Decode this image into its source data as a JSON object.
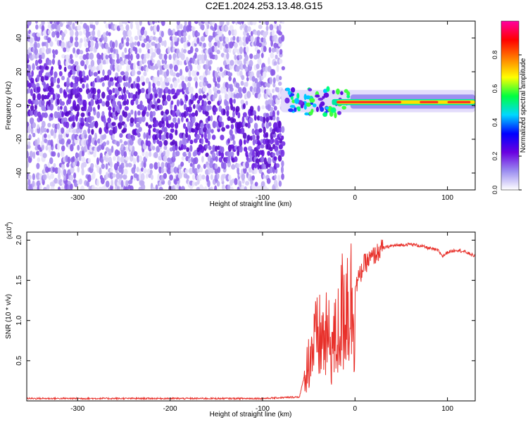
{
  "title": "C2E1.2024.253.13.48.G15",
  "chart_data": [
    {
      "type": "heatmap",
      "name": "spectrogram",
      "xlabel": "Height of straight line (km)",
      "ylabel": "Frequency (Hz)",
      "xlim": [
        -355,
        130
      ],
      "ylim": [
        -50,
        50
      ],
      "xticks": [
        -300,
        -200,
        -100,
        0,
        100
      ],
      "yticks": [
        -40,
        -20,
        0,
        20,
        40
      ],
      "noise_region_end_km": -78,
      "signal_band": {
        "x_start": -80,
        "x_end": 130,
        "center_hz": 2,
        "halfwidth_hz": 3
      },
      "colorbar": {
        "label": "Normalized spectral amplitude",
        "range": [
          0,
          1
        ],
        "ticks": [
          0.0,
          0.2,
          0.4,
          0.6,
          0.8
        ],
        "colors": [
          "#ffffff",
          "#9c8ef0",
          "#6a00e0",
          "#0000ff",
          "#00d8ff",
          "#00ff40",
          "#ffff00",
          "#ff8000",
          "#ff0000",
          "#ff00a0"
        ]
      }
    },
    {
      "type": "line",
      "name": "snr",
      "xlabel": "Height of straight line (km)",
      "ylabel": "SNR (10 * v/v)",
      "exponent_label": "(x10",
      "exponent_power": "4",
      "exponent_close": ")",
      "xlim": [
        -355,
        130
      ],
      "ylim": [
        0,
        2.1
      ],
      "xticks": [
        -300,
        -200,
        -100,
        0,
        100
      ],
      "yticks": [
        0.5,
        1.0,
        1.5,
        2.0
      ],
      "color": "#e8302a",
      "series": [
        {
          "name": "snr",
          "x": [
            -355,
            -300,
            -200,
            -100,
            -60,
            -55,
            -50,
            -45,
            -40,
            -35,
            -30,
            -25,
            -20,
            -15,
            -12,
            -10,
            -5,
            0,
            5,
            10,
            15,
            20,
            25,
            30,
            40,
            50,
            60,
            70,
            80,
            90,
            95,
            100,
            110,
            120,
            130
          ],
          "y": [
            0.03,
            0.03,
            0.03,
            0.03,
            0.05,
            0.3,
            0.6,
            0.8,
            0.9,
            0.9,
            0.9,
            0.8,
            0.9,
            1.2,
            1.4,
            1.5,
            1.45,
            1.4,
            1.55,
            1.7,
            1.75,
            1.8,
            1.85,
            1.9,
            1.93,
            1.94,
            1.95,
            1.93,
            1.9,
            1.87,
            1.8,
            1.85,
            1.88,
            1.85,
            1.8
          ]
        }
      ]
    }
  ]
}
